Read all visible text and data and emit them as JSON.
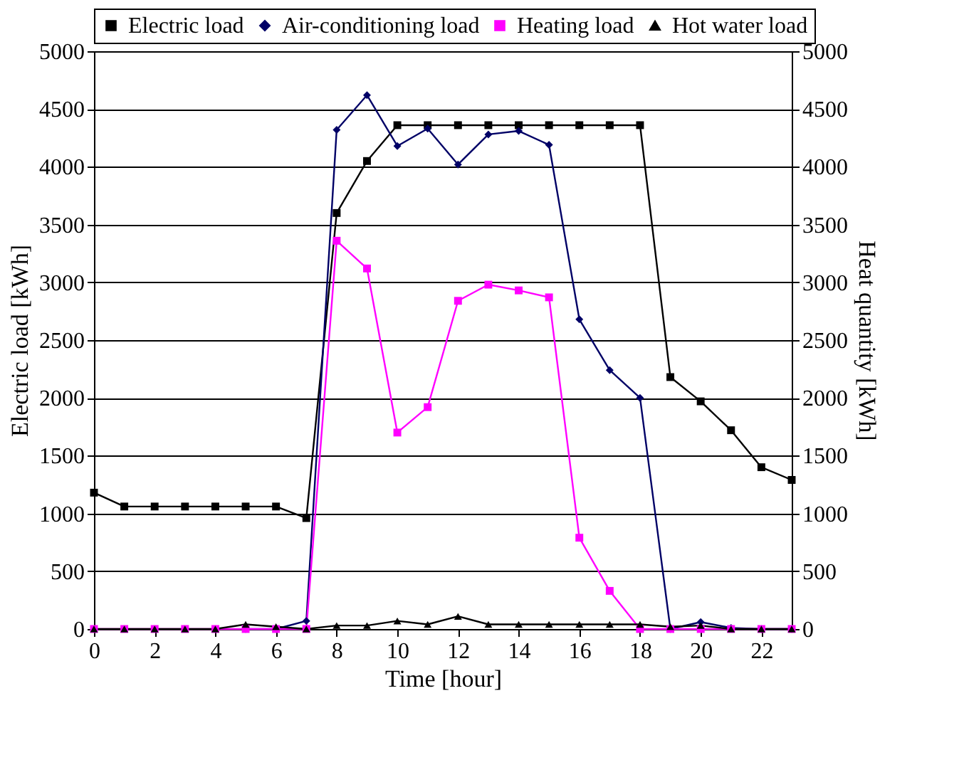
{
  "chart_data": {
    "type": "line",
    "xlabel": "Time [hour]",
    "ylabel": "Electric load [kWh]",
    "y2label": "Heat quantity [kWh]",
    "x": [
      0,
      1,
      2,
      3,
      4,
      5,
      6,
      7,
      8,
      9,
      10,
      11,
      12,
      13,
      14,
      15,
      16,
      17,
      18,
      19,
      20,
      21,
      22,
      23
    ],
    "xlim": [
      0,
      23
    ],
    "xticks": [
      0,
      2,
      4,
      6,
      8,
      10,
      12,
      14,
      16,
      18,
      20,
      22
    ],
    "ylim": [
      0,
      5000
    ],
    "yticks": [
      0,
      500,
      1000,
      1500,
      2000,
      2500,
      3000,
      3500,
      4000,
      4500,
      5000
    ],
    "y2lim": [
      0,
      5000
    ],
    "y2ticks": [
      0,
      500,
      1000,
      1500,
      2000,
      2500,
      3000,
      3500,
      4000,
      4500,
      5000
    ],
    "grid": "y",
    "legend": "top",
    "line_style": "solid",
    "series": [
      {
        "name": "Electric load",
        "color": "#000000",
        "marker": "square",
        "values": [
          1180,
          1060,
          1060,
          1060,
          1060,
          1060,
          1060,
          960,
          3600,
          4050,
          4360,
          4360,
          4360,
          4360,
          4360,
          4360,
          4360,
          4360,
          4360,
          2180,
          1970,
          1720,
          1400,
          1290
        ]
      },
      {
        "name": "Air-conditioning load",
        "color": "#000066",
        "marker": "diamond",
        "axis": "y2",
        "values": [
          null,
          null,
          null,
          null,
          null,
          0,
          0,
          70,
          4320,
          4620,
          4180,
          4330,
          4020,
          4280,
          4310,
          4190,
          2680,
          2240,
          2000,
          0,
          60,
          10,
          0,
          0
        ]
      },
      {
        "name": "Heating load",
        "color": "#ff00ff",
        "marker": "square",
        "axis": "y2",
        "values": [
          0,
          0,
          0,
          0,
          0,
          0,
          0,
          0,
          3360,
          3120,
          1700,
          1920,
          2840,
          2980,
          2930,
          2870,
          790,
          330,
          0,
          0,
          0,
          0,
          0,
          0
        ]
      },
      {
        "name": "Hot water load",
        "color": "#000000",
        "marker": "triangle",
        "axis": "y2",
        "values": [
          0,
          0,
          0,
          0,
          0,
          40,
          20,
          0,
          30,
          30,
          70,
          40,
          110,
          40,
          40,
          40,
          40,
          40,
          40,
          20,
          30,
          0,
          0,
          0
        ]
      }
    ]
  }
}
